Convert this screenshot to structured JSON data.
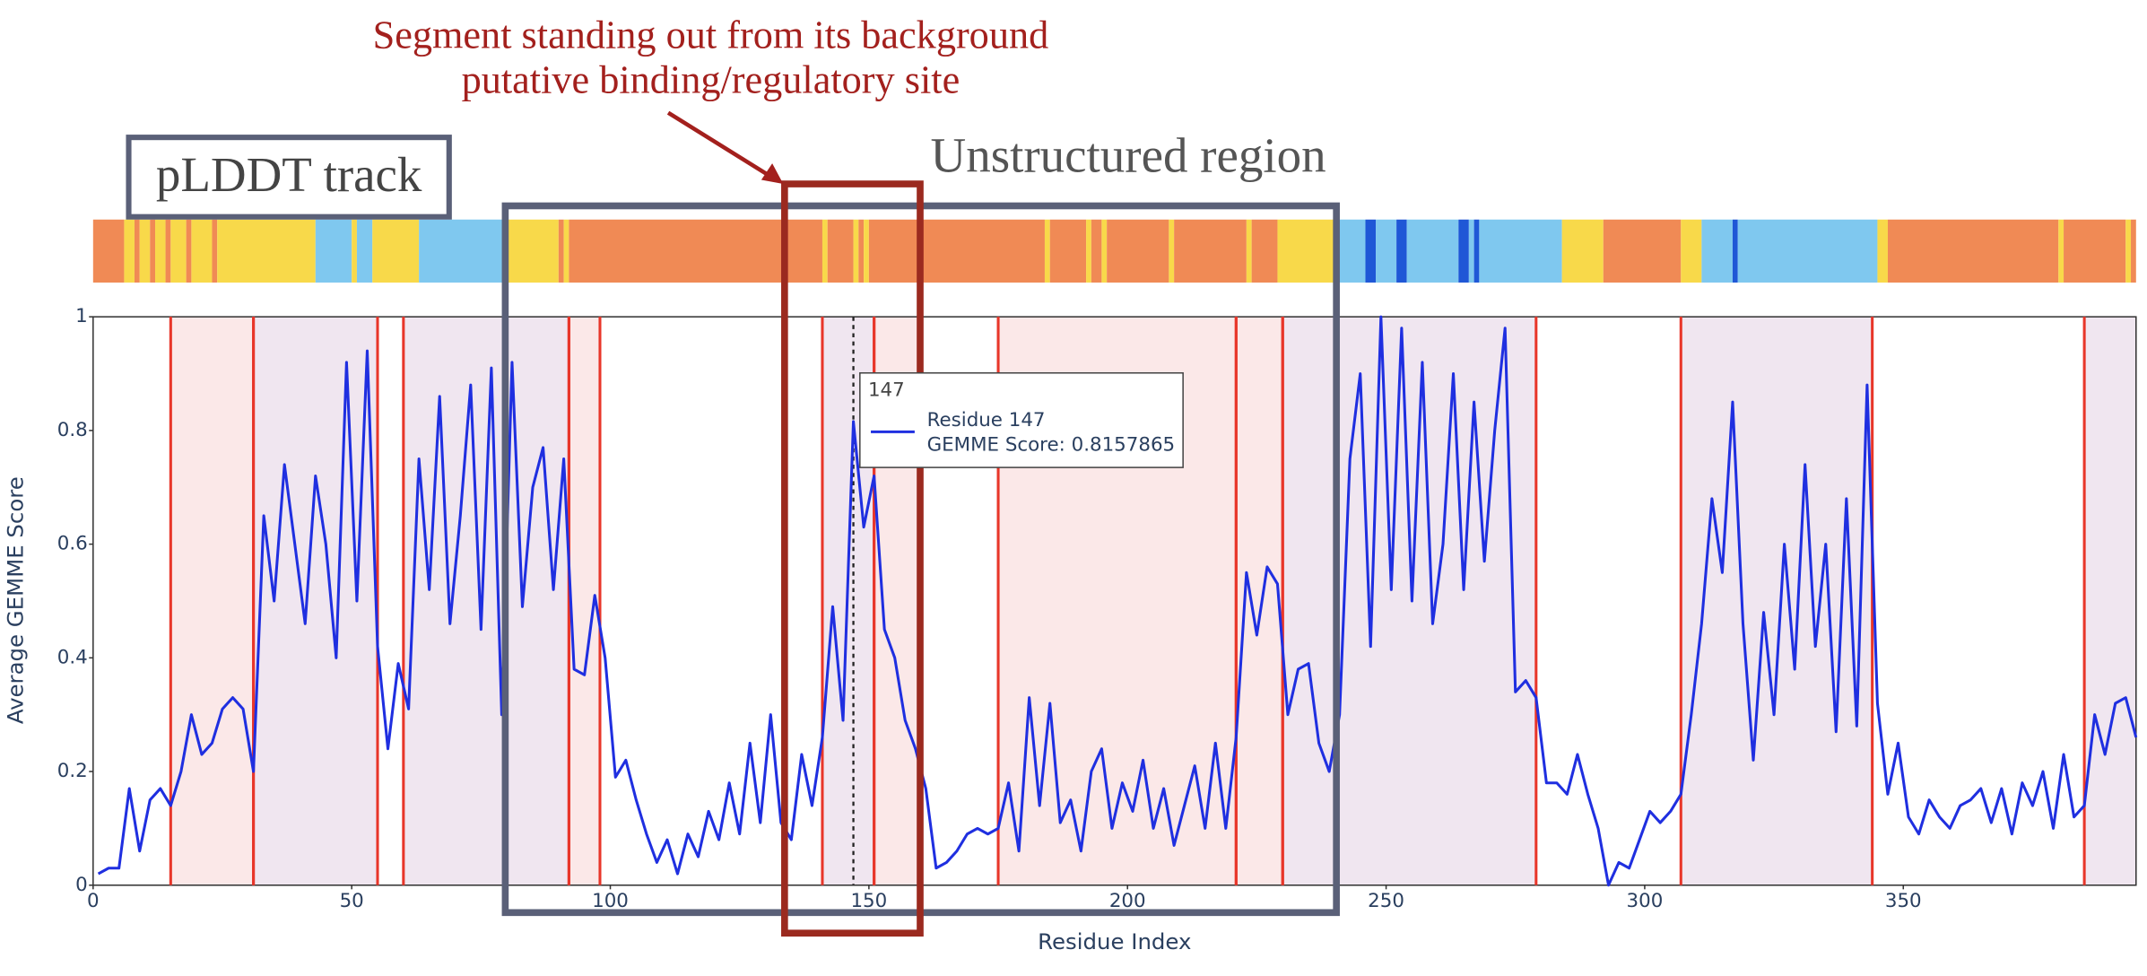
{
  "chart_data": {
    "type": "line",
    "x_label": "Residue Index",
    "y_label": "Average GEMME Score",
    "xlim": [
      0,
      395
    ],
    "ylim": [
      0,
      1
    ],
    "xticks": [
      0,
      50,
      100,
      150,
      200,
      250,
      300,
      350
    ],
    "yticks": [
      0,
      0.2,
      0.4,
      0.6,
      0.8,
      1
    ],
    "color": "#1f2fe0",
    "x": [
      1,
      3,
      5,
      7,
      9,
      11,
      13,
      15,
      17,
      19,
      21,
      23,
      25,
      27,
      29,
      31,
      33,
      35,
      37,
      39,
      41,
      43,
      45,
      47,
      49,
      51,
      53,
      55,
      57,
      59,
      61,
      63,
      65,
      67,
      69,
      71,
      73,
      75,
      77,
      79,
      81,
      83,
      85,
      87,
      89,
      91,
      93,
      95,
      97,
      99,
      101,
      103,
      105,
      107,
      109,
      111,
      113,
      115,
      117,
      119,
      121,
      123,
      125,
      127,
      129,
      131,
      133,
      135,
      137,
      139,
      141,
      143,
      145,
      147,
      149,
      151,
      153,
      155,
      157,
      159,
      161,
      163,
      165,
      167,
      169,
      171,
      173,
      175,
      177,
      179,
      181,
      183,
      185,
      187,
      189,
      191,
      193,
      195,
      197,
      199,
      201,
      203,
      205,
      207,
      209,
      211,
      213,
      215,
      217,
      219,
      221,
      223,
      225,
      227,
      229,
      231,
      233,
      235,
      237,
      239,
      241,
      243,
      245,
      247,
      249,
      251,
      253,
      255,
      257,
      259,
      261,
      263,
      265,
      267,
      269,
      271,
      273,
      275,
      277,
      279,
      281,
      283,
      285,
      287,
      289,
      291,
      293,
      295,
      297,
      299,
      301,
      303,
      305,
      307,
      309,
      311,
      313,
      315,
      317,
      319,
      321,
      323,
      325,
      327,
      329,
      331,
      333,
      335,
      337,
      339,
      341,
      343,
      345,
      347,
      349,
      351,
      353,
      355,
      357,
      359,
      361,
      363,
      365,
      367,
      369,
      371,
      373,
      375,
      377,
      379,
      381,
      383,
      385,
      387,
      389,
      391,
      393,
      395
    ],
    "values": [
      0.02,
      0.03,
      0.03,
      0.17,
      0.06,
      0.15,
      0.17,
      0.14,
      0.2,
      0.3,
      0.23,
      0.25,
      0.31,
      0.33,
      0.31,
      0.2,
      0.65,
      0.5,
      0.74,
      0.6,
      0.46,
      0.72,
      0.6,
      0.4,
      0.92,
      0.5,
      0.94,
      0.42,
      0.24,
      0.39,
      0.31,
      0.75,
      0.52,
      0.86,
      0.46,
      0.65,
      0.88,
      0.45,
      0.91,
      0.3,
      0.92,
      0.49,
      0.7,
      0.77,
      0.52,
      0.75,
      0.38,
      0.37,
      0.51,
      0.4,
      0.19,
      0.22,
      0.15,
      0.09,
      0.04,
      0.08,
      0.02,
      0.09,
      0.05,
      0.13,
      0.08,
      0.18,
      0.09,
      0.25,
      0.11,
      0.3,
      0.11,
      0.08,
      0.23,
      0.14,
      0.26,
      0.49,
      0.29,
      0.8157865,
      0.63,
      0.72,
      0.45,
      0.4,
      0.29,
      0.24,
      0.17,
      0.03,
      0.04,
      0.06,
      0.09,
      0.1,
      0.09,
      0.1,
      0.18,
      0.06,
      0.33,
      0.14,
      0.32,
      0.11,
      0.15,
      0.06,
      0.2,
      0.24,
      0.1,
      0.18,
      0.13,
      0.22,
      0.1,
      0.17,
      0.07,
      0.14,
      0.21,
      0.1,
      0.25,
      0.1,
      0.26,
      0.55,
      0.44,
      0.56,
      0.53,
      0.3,
      0.38,
      0.39,
      0.25,
      0.2,
      0.3,
      0.75,
      0.9,
      0.42,
      1.0,
      0.52,
      0.98,
      0.5,
      0.92,
      0.46,
      0.6,
      0.9,
      0.52,
      0.85,
      0.57,
      0.8,
      0.98,
      0.34,
      0.36,
      0.33,
      0.18,
      0.18,
      0.16,
      0.23,
      0.16,
      0.1,
      0.0,
      0.04,
      0.03,
      0.08,
      0.13,
      0.11,
      0.13,
      0.16,
      0.3,
      0.46,
      0.68,
      0.55,
      0.85,
      0.46,
      0.22,
      0.48,
      0.3,
      0.6,
      0.38,
      0.74,
      0.42,
      0.6,
      0.27,
      0.68,
      0.28,
      0.88,
      0.32,
      0.16,
      0.25,
      0.12,
      0.09,
      0.15,
      0.12,
      0.1,
      0.14,
      0.15,
      0.17,
      0.11,
      0.17,
      0.09,
      0.18,
      0.14,
      0.2,
      0.1,
      0.23,
      0.12,
      0.14,
      0.3,
      0.23,
      0.32,
      0.33,
      0.26
    ],
    "boundary_color": "#e8362a",
    "regions": [
      {
        "start": 15,
        "end": 31,
        "color": "#fbe8e8"
      },
      {
        "start": 31,
        "end": 55,
        "color": "#f0e6f0"
      },
      {
        "start": 60,
        "end": 92,
        "color": "#f0e6f0"
      },
      {
        "start": 92,
        "end": 98,
        "color": "#fbe8e8"
      },
      {
        "start": 141,
        "end": 151,
        "color": "#f0e6f0"
      },
      {
        "start": 151,
        "end": 160,
        "color": "#fbe8e8"
      },
      {
        "start": 175,
        "end": 221,
        "color": "#fbe8e8"
      },
      {
        "start": 221,
        "end": 230,
        "color": "#fbe8e8"
      },
      {
        "start": 230,
        "end": 279,
        "color": "#f0e6f0"
      },
      {
        "start": 307,
        "end": 344,
        "color": "#f0e6f0"
      },
      {
        "start": 385,
        "end": 395,
        "color": "#f0e6f0"
      }
    ],
    "plddt_track": [
      {
        "start": 0,
        "end": 6,
        "color": "#f08a55"
      },
      {
        "start": 6,
        "end": 8,
        "color": "#f8d94a"
      },
      {
        "start": 8,
        "end": 9,
        "color": "#f08a55"
      },
      {
        "start": 9,
        "end": 11,
        "color": "#f8d94a"
      },
      {
        "start": 11,
        "end": 12,
        "color": "#f08a55"
      },
      {
        "start": 12,
        "end": 14,
        "color": "#f8d94a"
      },
      {
        "start": 14,
        "end": 15,
        "color": "#f08a55"
      },
      {
        "start": 15,
        "end": 18,
        "color": "#f8d94a"
      },
      {
        "start": 18,
        "end": 19,
        "color": "#f08a55"
      },
      {
        "start": 19,
        "end": 23,
        "color": "#f8d94a"
      },
      {
        "start": 23,
        "end": 24,
        "color": "#f08a55"
      },
      {
        "start": 24,
        "end": 43,
        "color": "#f8d94a"
      },
      {
        "start": 43,
        "end": 50,
        "color": "#7fc8ef"
      },
      {
        "start": 50,
        "end": 51,
        "color": "#f8d94a"
      },
      {
        "start": 51,
        "end": 54,
        "color": "#7fc8ef"
      },
      {
        "start": 54,
        "end": 63,
        "color": "#f8d94a"
      },
      {
        "start": 63,
        "end": 80,
        "color": "#7fc8ef"
      },
      {
        "start": 80,
        "end": 90,
        "color": "#f8d94a"
      },
      {
        "start": 90,
        "end": 91,
        "color": "#f08a55"
      },
      {
        "start": 91,
        "end": 92,
        "color": "#f8d94a"
      },
      {
        "start": 92,
        "end": 141,
        "color": "#f08a55"
      },
      {
        "start": 141,
        "end": 142,
        "color": "#f8d94a"
      },
      {
        "start": 142,
        "end": 147,
        "color": "#f08a55"
      },
      {
        "start": 147,
        "end": 148,
        "color": "#f8d94a"
      },
      {
        "start": 148,
        "end": 149,
        "color": "#f08a55"
      },
      {
        "start": 149,
        "end": 150,
        "color": "#f8d94a"
      },
      {
        "start": 150,
        "end": 184,
        "color": "#f08a55"
      },
      {
        "start": 184,
        "end": 185,
        "color": "#f8d94a"
      },
      {
        "start": 185,
        "end": 192,
        "color": "#f08a55"
      },
      {
        "start": 192,
        "end": 193,
        "color": "#f8d94a"
      },
      {
        "start": 193,
        "end": 195,
        "color": "#f08a55"
      },
      {
        "start": 195,
        "end": 196,
        "color": "#f8d94a"
      },
      {
        "start": 196,
        "end": 208,
        "color": "#f08a55"
      },
      {
        "start": 208,
        "end": 209,
        "color": "#f8d94a"
      },
      {
        "start": 209,
        "end": 223,
        "color": "#f08a55"
      },
      {
        "start": 223,
        "end": 224,
        "color": "#f8d94a"
      },
      {
        "start": 224,
        "end": 229,
        "color": "#f08a55"
      },
      {
        "start": 229,
        "end": 241,
        "color": "#f8d94a"
      },
      {
        "start": 241,
        "end": 246,
        "color": "#7fc8ef"
      },
      {
        "start": 246,
        "end": 248,
        "color": "#1f57d6"
      },
      {
        "start": 248,
        "end": 252,
        "color": "#7fc8ef"
      },
      {
        "start": 252,
        "end": 254,
        "color": "#1f57d6"
      },
      {
        "start": 254,
        "end": 264,
        "color": "#7fc8ef"
      },
      {
        "start": 264,
        "end": 266,
        "color": "#1f57d6"
      },
      {
        "start": 266,
        "end": 267,
        "color": "#7fc8ef"
      },
      {
        "start": 267,
        "end": 268,
        "color": "#1f57d6"
      },
      {
        "start": 268,
        "end": 284,
        "color": "#7fc8ef"
      },
      {
        "start": 284,
        "end": 292,
        "color": "#f8d94a"
      },
      {
        "start": 292,
        "end": 307,
        "color": "#f08a55"
      },
      {
        "start": 307,
        "end": 311,
        "color": "#f8d94a"
      },
      {
        "start": 311,
        "end": 317,
        "color": "#7fc8ef"
      },
      {
        "start": 317,
        "end": 318,
        "color": "#1f57d6"
      },
      {
        "start": 318,
        "end": 345,
        "color": "#7fc8ef"
      },
      {
        "start": 345,
        "end": 347,
        "color": "#f8d94a"
      },
      {
        "start": 347,
        "end": 380,
        "color": "#f08a55"
      },
      {
        "start": 380,
        "end": 381,
        "color": "#f8d94a"
      },
      {
        "start": 381,
        "end": 393,
        "color": "#f08a55"
      },
      {
        "start": 393,
        "end": 394,
        "color": "#f8d94a"
      },
      {
        "start": 394,
        "end": 395,
        "color": "#f08a55"
      }
    ],
    "hover": {
      "x": 147,
      "line1": "Residue 147",
      "line2": "GEMME Score: 0.8157865"
    },
    "annotations": {
      "site_line1": "Segment standing out from its background",
      "site_line2": "putative binding/regulatory site",
      "track_label": "pLDDT track",
      "region_label": "Unstructured region"
    }
  }
}
